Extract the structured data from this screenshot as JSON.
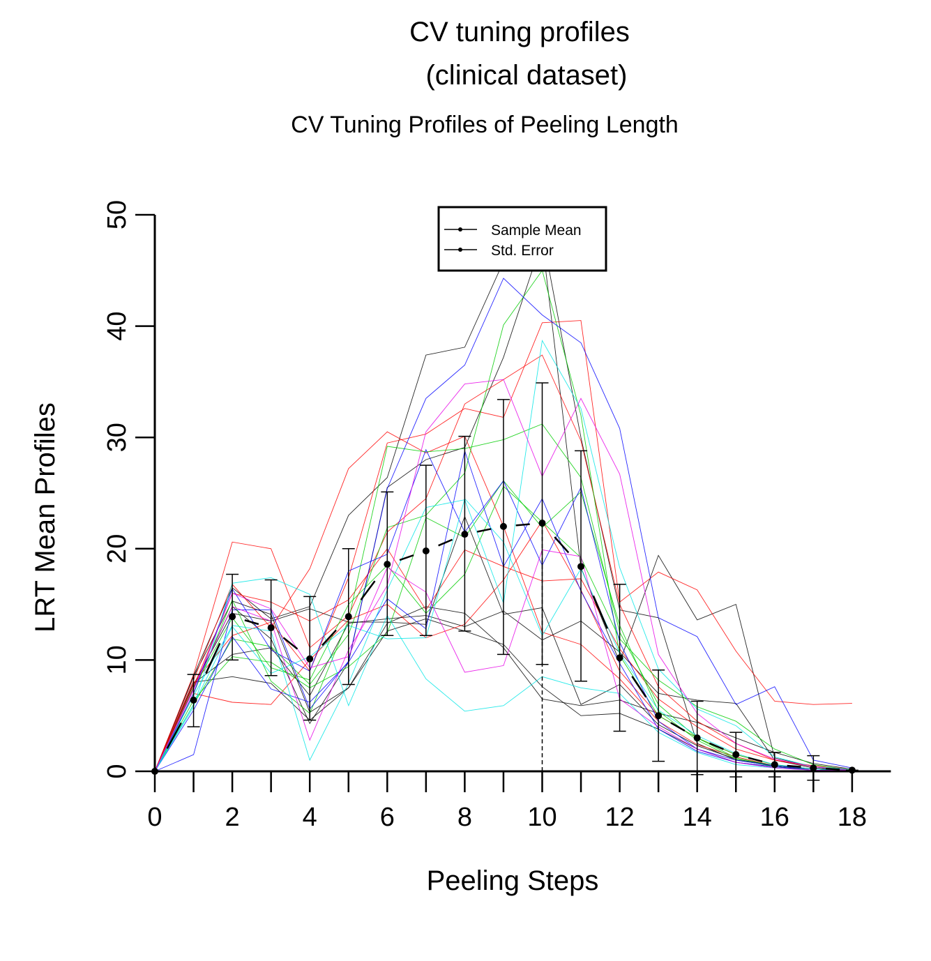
{
  "title_line1": "CV tuning profiles",
  "title_line2": "(clinical dataset)",
  "subtitle": "CV Tuning Profiles of Peeling Length",
  "chart_data": {
    "type": "line",
    "xlabel": "Peeling Steps",
    "ylabel": "LRT Mean Profiles",
    "xlim": [
      0,
      19
    ],
    "ylim": [
      0,
      50
    ],
    "xticks_minor": [
      0,
      1,
      2,
      3,
      4,
      5,
      6,
      7,
      8,
      9,
      10,
      11,
      12,
      13,
      14,
      15,
      16,
      17,
      18
    ],
    "xtick_labels": [
      "0",
      "2",
      "4",
      "6",
      "8",
      "10",
      "12",
      "14",
      "16",
      "18"
    ],
    "ytick_labels": [
      "0",
      "10",
      "20",
      "30",
      "40",
      "50"
    ],
    "legend": {
      "placement": "top-center",
      "entries": [
        "Sample Mean",
        "Std. Error"
      ]
    },
    "selected_step_marker": 10,
    "mean": {
      "x": [
        0,
        1,
        2,
        3,
        4,
        5,
        6,
        7,
        8,
        9,
        10,
        11,
        12,
        13,
        14,
        15,
        16,
        17,
        18
      ],
      "y": [
        0,
        6.4,
        13.9,
        12.9,
        10.1,
        13.9,
        18.6,
        19.8,
        21.3,
        22.0,
        22.3,
        18.4,
        10.2,
        5.0,
        3.0,
        1.5,
        0.6,
        0.3,
        0.1
      ]
    },
    "std_error": {
      "lower": [
        0,
        4.0,
        10.0,
        8.6,
        4.6,
        7.8,
        12.2,
        12.2,
        12.6,
        10.5,
        9.6,
        8.1,
        3.6,
        0.9,
        -0.3,
        -0.5,
        -0.5,
        -0.8,
        0.0
      ],
      "upper": [
        0,
        8.7,
        17.7,
        17.2,
        15.7,
        20.0,
        25.1,
        27.5,
        30.1,
        33.4,
        34.9,
        28.8,
        16.8,
        9.1,
        6.3,
        3.5,
        1.7,
        1.4,
        0.1
      ]
    },
    "replicate_colors": [
      "#000000",
      "#ff0000",
      "#00cc00",
      "#0000ff",
      "#00e5e5",
      "#e600e6"
    ],
    "replicates": [
      {
        "color": "#000000",
        "y": [
          0,
          8.5,
          15.3,
          14.1,
          5.3,
          7.5,
          13.3,
          14.8,
          14.2,
          11.1,
          6.5,
          5.9,
          6.4,
          5.2,
          4.4,
          3.0,
          1.7,
          0.7,
          0.2
        ]
      },
      {
        "color": "#000000",
        "y": [
          0,
          8.0,
          8.5,
          7.9,
          4.6,
          7.5,
          12.6,
          13.7,
          12.6,
          11.4,
          7.6,
          5.0,
          5.2,
          3.8,
          2.0,
          0.8,
          0.4,
          0.2,
          0.1
        ]
      },
      {
        "color": "#000000",
        "y": [
          0,
          8.6,
          16.5,
          13.7,
          14.8,
          23.0,
          26.4,
          37.4,
          38.1,
          45.8,
          48.3,
          30.0,
          14.5,
          13.8,
          2.5,
          1.0,
          0.5,
          0.2,
          0.1
        ]
      },
      {
        "color": "#000000",
        "y": [
          0,
          7.5,
          14.8,
          11.9,
          4.3,
          9.8,
          25.5,
          28.0,
          29.1,
          37.2,
          47.7,
          18.3,
          9.8,
          19.4,
          13.6,
          15.0,
          1.2,
          0.4,
          0.1
        ]
      },
      {
        "color": "#000000",
        "y": [
          0,
          7.9,
          10.5,
          11.1,
          6.8,
          13.3,
          13.7,
          14.0,
          13.0,
          14.4,
          11.8,
          13.5,
          10.7,
          7.0,
          6.4,
          6.1,
          1.0,
          0.3,
          0.1
        ]
      },
      {
        "color": "#000000",
        "y": [
          0,
          7.8,
          14.2,
          13.5,
          14.6,
          13.4,
          13.4,
          13.2,
          22.9,
          14.1,
          14.7,
          6.0,
          7.8,
          4.2,
          2.3,
          1.1,
          0.5,
          0.2,
          0.1
        ]
      },
      {
        "color": "#ff0000",
        "y": [
          0,
          8.7,
          20.6,
          20.0,
          11.1,
          14.0,
          21.5,
          24.5,
          33.0,
          35.2,
          37.4,
          29.7,
          15.0,
          7.6,
          4.5,
          2.5,
          1.0,
          0.5,
          0.2
        ]
      },
      {
        "color": "#ff0000",
        "y": [
          0,
          7.9,
          12.2,
          13.4,
          9.0,
          17.4,
          29.5,
          30.3,
          32.6,
          31.8,
          40.3,
          40.5,
          15.2,
          17.9,
          16.3,
          10.8,
          6.3,
          6.0,
          6.1
        ]
      },
      {
        "color": "#ff0000",
        "y": [
          0,
          7.6,
          16.0,
          15.2,
          13.5,
          15.4,
          20.0,
          14.5,
          19.9,
          18.4,
          17.1,
          17.3,
          11.0,
          6.5,
          4.0,
          2.0,
          1.0,
          0.4,
          0.1
        ]
      },
      {
        "color": "#ff0000",
        "y": [
          0,
          7.0,
          6.2,
          6.0,
          10.0,
          13.6,
          15.0,
          12.0,
          13.2,
          17.2,
          22.5,
          16.3,
          9.0,
          5.0,
          3.0,
          1.5,
          0.6,
          0.2,
          0.1
        ]
      },
      {
        "color": "#ff0000",
        "y": [
          0,
          8.2,
          16.8,
          12.9,
          18.2,
          27.2,
          30.5,
          28.6,
          30.1,
          22.0,
          12.5,
          11.4,
          8.3,
          4.5,
          2.4,
          1.3,
          0.5,
          0.2,
          0.1
        ]
      },
      {
        "color": "#00cc00",
        "y": [
          0,
          6.0,
          11.9,
          11.2,
          7.8,
          12.3,
          21.9,
          23.0,
          26.8,
          40.1,
          45.0,
          32.0,
          10.4,
          5.0,
          3.0,
          1.2,
          0.5,
          0.2,
          0.1
        ]
      },
      {
        "color": "#00cc00",
        "y": [
          0,
          7.0,
          15.4,
          8.1,
          5.2,
          13.6,
          29.2,
          28.7,
          29.0,
          29.8,
          31.2,
          26.4,
          12.5,
          6.0,
          3.0,
          1.5,
          0.6,
          0.2,
          0.1
        ]
      },
      {
        "color": "#00cc00",
        "y": [
          0,
          6.4,
          10.3,
          9.8,
          7.5,
          9.4,
          12.4,
          22.8,
          21.0,
          26.1,
          21.9,
          25.1,
          13.1,
          5.4,
          2.8,
          1.1,
          0.4,
          0.1,
          0.1
        ]
      },
      {
        "color": "#00cc00",
        "y": [
          0,
          7.5,
          13.8,
          9.3,
          8.2,
          15.0,
          18.5,
          14.2,
          17.7,
          25.6,
          22.4,
          19.2,
          11.9,
          8.2,
          5.8,
          4.5,
          2.0,
          0.6,
          0.1
        ]
      },
      {
        "color": "#0000ff",
        "y": [
          0,
          1.5,
          14.5,
          14.5,
          5.6,
          9.9,
          25.4,
          33.5,
          36.5,
          44.3,
          41.0,
          38.5,
          30.8,
          13.8,
          12.1,
          6.0,
          7.6,
          1.0,
          0.3
        ]
      },
      {
        "color": "#0000ff",
        "y": [
          0,
          7.0,
          16.4,
          10.9,
          9.0,
          18.0,
          19.5,
          28.9,
          21.5,
          26.1,
          18.5,
          25.5,
          11.6,
          4.5,
          2.0,
          1.0,
          0.5,
          0.2,
          0.1
        ]
      },
      {
        "color": "#0000ff",
        "y": [
          0,
          5.5,
          12.1,
          7.4,
          6.2,
          9.8,
          15.5,
          12.8,
          28.8,
          18.4,
          24.5,
          16.2,
          9.7,
          3.8,
          1.8,
          0.8,
          0.4,
          0.1,
          0.1
        ]
      },
      {
        "color": "#00e5e5",
        "y": [
          0,
          6.8,
          13.1,
          12.6,
          1.0,
          7.9,
          16.3,
          23.7,
          24.4,
          15.1,
          38.7,
          32.6,
          18.3,
          9.2,
          5.6,
          4.1,
          1.3,
          0.4,
          0.2
        ]
      },
      {
        "color": "#00e5e5",
        "y": [
          0,
          5.8,
          16.9,
          17.4,
          15.9,
          5.9,
          14.0,
          8.3,
          5.4,
          5.9,
          8.5,
          7.5,
          7.0,
          3.5,
          1.7,
          0.6,
          0.3,
          0.1,
          0.1
        ]
      },
      {
        "color": "#00e5e5",
        "y": [
          0,
          6.0,
          13.0,
          8.8,
          10.3,
          13.1,
          11.9,
          12.0,
          24.5,
          20.6,
          12.2,
          18.2,
          10.6,
          5.5,
          3.2,
          1.6,
          0.6,
          0.2,
          0.1
        ]
      },
      {
        "color": "#e600e6",
        "y": [
          0,
          7.4,
          14.8,
          13.5,
          2.8,
          10.9,
          16.7,
          30.5,
          34.8,
          35.2,
          26.5,
          33.5,
          26.7,
          10.5,
          5.2,
          2.5,
          1.1,
          0.4,
          0.1
        ]
      },
      {
        "color": "#e600e6",
        "y": [
          0,
          7.3,
          16.0,
          14.6,
          9.3,
          10.3,
          18.3,
          16.1,
          8.9,
          9.5,
          19.9,
          19.3,
          6.5,
          4.0,
          2.0,
          0.8,
          0.3,
          0.1,
          0.1
        ]
      }
    ]
  }
}
